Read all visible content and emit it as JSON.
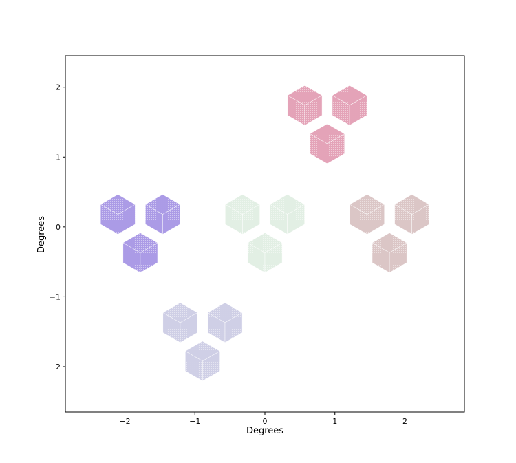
{
  "chart_data": {
    "type": "scatter",
    "title": "",
    "xlabel": "Degrees",
    "ylabel": "Degrees",
    "xlim": [
      -2.85,
      2.85
    ],
    "ylim": [
      -2.65,
      2.45
    ],
    "xticks": [
      -2,
      -1,
      0,
      1,
      2
    ],
    "yticks": [
      -2,
      -1,
      0,
      1,
      2
    ],
    "xtick_labels": [
      "−2",
      "−1",
      "0",
      "1",
      "2"
    ],
    "ytick_labels": [
      "−2",
      "−1",
      "0",
      "1",
      "2"
    ],
    "grid": false,
    "cube_size": 0.285,
    "groups": [
      {
        "color": "#e4a3b8",
        "cubes": [
          {
            "x": 0.57,
            "y": 1.74
          },
          {
            "x": 1.21,
            "y": 1.74
          },
          {
            "x": 0.89,
            "y": 1.19
          }
        ]
      },
      {
        "color": "#ab9be6",
        "cubes": [
          {
            "x": -2.1,
            "y": 0.18
          },
          {
            "x": -1.46,
            "y": 0.18
          },
          {
            "x": -1.78,
            "y": -0.37
          }
        ]
      },
      {
        "color": "#e2efe4",
        "cubes": [
          {
            "x": -0.32,
            "y": 0.18
          },
          {
            "x": 0.32,
            "y": 0.18
          },
          {
            "x": 0.0,
            "y": -0.37
          }
        ]
      },
      {
        "color": "#dbc6c6",
        "cubes": [
          {
            "x": 1.46,
            "y": 0.18
          },
          {
            "x": 2.1,
            "y": 0.18
          },
          {
            "x": 1.78,
            "y": -0.37
          }
        ]
      },
      {
        "color": "#cfcfe6",
        "cubes": [
          {
            "x": -1.21,
            "y": -1.37
          },
          {
            "x": -0.57,
            "y": -1.37
          },
          {
            "x": -0.89,
            "y": -1.92
          }
        ]
      }
    ]
  }
}
